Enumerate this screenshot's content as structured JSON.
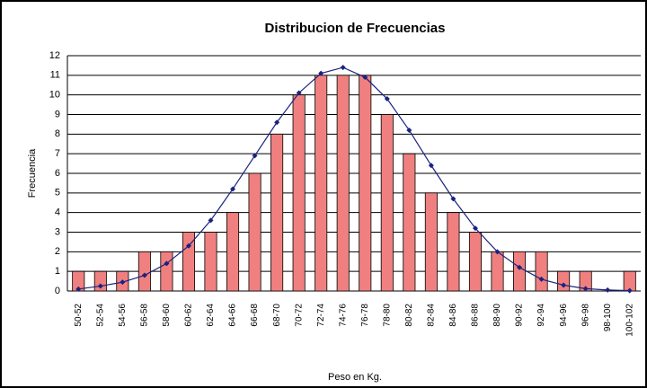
{
  "chart_data": {
    "type": "bar",
    "title": "Distribucion de Frecuencias",
    "x_label": "Peso en Kg.",
    "y_label": "Frecuencia",
    "categories": [
      "50-52",
      "52-54",
      "54-56",
      "56-58",
      "58-60",
      "60-62",
      "62-64",
      "64-66",
      "66-68",
      "68-70",
      "70-72",
      "72-74",
      "74-76",
      "76-78",
      "78-80",
      "80-82",
      "82-84",
      "84-86",
      "86-88",
      "88-90",
      "90-92",
      "92-94",
      "94-96",
      "96-98",
      "98-100",
      "100-102"
    ],
    "series": [
      {
        "type": "bar",
        "color": "#f08080",
        "values": [
          1,
          1,
          1,
          2,
          2,
          3,
          3,
          4,
          6,
          8,
          10,
          11,
          11,
          11,
          9,
          7,
          5,
          4,
          3,
          2,
          2,
          2,
          1,
          1,
          0,
          1
        ]
      },
      {
        "type": "line",
        "color": "#1a237e",
        "values": [
          0.1,
          0.25,
          0.45,
          0.8,
          1.4,
          2.3,
          3.6,
          5.2,
          6.9,
          8.6,
          10.1,
          11.1,
          11.4,
          10.9,
          9.8,
          8.2,
          6.4,
          4.7,
          3.2,
          2.0,
          1.2,
          0.6,
          0.3,
          0.12,
          0.05,
          0.02
        ]
      }
    ],
    "ylim": [
      0,
      12
    ],
    "yticks": [
      0,
      1,
      2,
      3,
      4,
      5,
      6,
      7,
      8,
      9,
      10,
      11,
      12
    ],
    "grid": true
  }
}
